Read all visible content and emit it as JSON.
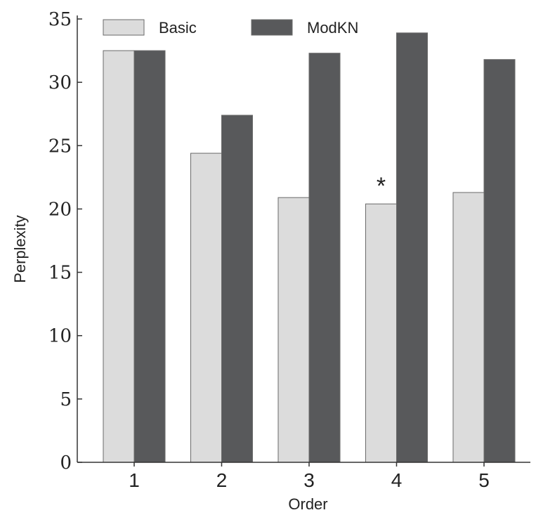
{
  "chart_data": {
    "type": "bar",
    "categories": [
      "1",
      "2",
      "3",
      "4",
      "5"
    ],
    "series": [
      {
        "name": "Basic",
        "values": [
          32.5,
          24.4,
          20.9,
          20.4,
          21.3
        ],
        "color": "#dcdcdc"
      },
      {
        "name": "ModKN",
        "values": [
          32.5,
          27.4,
          32.3,
          33.9,
          31.8
        ],
        "color": "#58595b"
      }
    ],
    "xlabel": "Order",
    "ylabel": "Perplexity",
    "ylim": [
      0,
      35
    ],
    "yticks": [
      0,
      5,
      10,
      15,
      20,
      25,
      30,
      35
    ],
    "grid": false,
    "legend_position": "top",
    "annotations": [
      {
        "text": "*",
        "category": "4",
        "series": "Basic"
      }
    ]
  }
}
